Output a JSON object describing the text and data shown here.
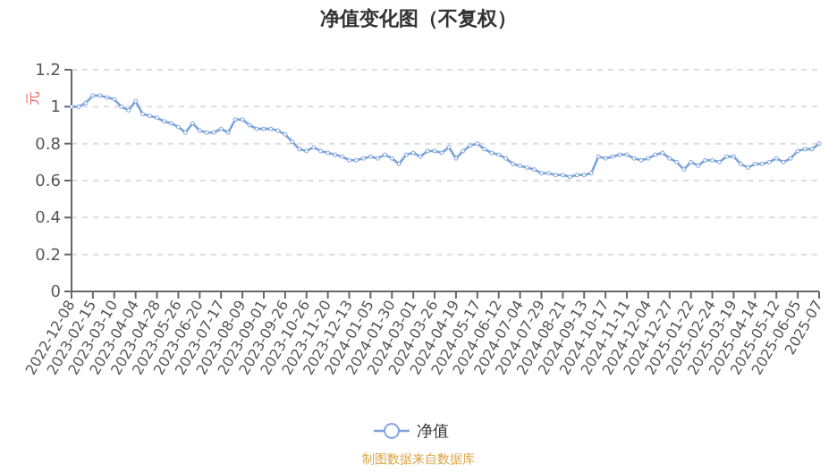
{
  "chart_data": {
    "type": "line",
    "title": "净值变化图（不复权）",
    "ylabel": "元",
    "categories": [
      "2022-12-08",
      null,
      null,
      "2023-02-15",
      null,
      null,
      "2023-03-10",
      null,
      null,
      "2023-04-04",
      null,
      null,
      "2023-04-28",
      null,
      null,
      "2023-05-26",
      null,
      null,
      "2023-06-20",
      null,
      null,
      "2023-07-17",
      null,
      null,
      "2023-08-09",
      null,
      null,
      "2023-09-01",
      null,
      null,
      "2023-09-26",
      null,
      null,
      "2023-10-26",
      null,
      null,
      "2023-11-20",
      null,
      null,
      "2023-12-13",
      null,
      null,
      "2024-01-05",
      null,
      null,
      "2024-01-30",
      null,
      null,
      "2024-03-01",
      null,
      null,
      "2024-03-26",
      null,
      null,
      "2024-04-19",
      null,
      null,
      "2024-05-17",
      null,
      null,
      "2024-06-12",
      null,
      null,
      "2024-07-04",
      null,
      null,
      "2024-07-29",
      null,
      null,
      "2024-08-21",
      null,
      null,
      "2024-09-13",
      null,
      null,
      "2024-10-17",
      null,
      null,
      "2024-11-11",
      null,
      null,
      "2024-12-04",
      null,
      null,
      "2024-12-27",
      null,
      null,
      "2025-01-22",
      null,
      null,
      "2025-02-24",
      null,
      null,
      "2025-03-19",
      null,
      null,
      "2025-04-14",
      null,
      null,
      "2025-05-12",
      null,
      null,
      "2025-06-05",
      null,
      null,
      "2025-07"
    ],
    "series": [
      {
        "name": "净值",
        "color": "#7ba3dc",
        "values": [
          1.0,
          1.0,
          1.02,
          1.06,
          1.06,
          1.05,
          1.04,
          1.0,
          0.98,
          1.03,
          0.96,
          0.95,
          0.94,
          0.92,
          0.91,
          0.89,
          0.86,
          0.91,
          0.87,
          0.86,
          0.86,
          0.88,
          0.86,
          0.93,
          0.93,
          0.9,
          0.88,
          0.88,
          0.88,
          0.87,
          0.85,
          0.81,
          0.77,
          0.76,
          0.78,
          0.76,
          0.75,
          0.74,
          0.73,
          0.71,
          0.71,
          0.72,
          0.73,
          0.72,
          0.74,
          0.72,
          0.69,
          0.74,
          0.75,
          0.73,
          0.76,
          0.76,
          0.75,
          0.78,
          0.72,
          0.76,
          0.79,
          0.8,
          0.77,
          0.75,
          0.74,
          0.72,
          0.69,
          0.68,
          0.67,
          0.66,
          0.64,
          0.64,
          0.63,
          0.63,
          0.62,
          0.63,
          0.63,
          0.64,
          0.73,
          0.72,
          0.73,
          0.74,
          0.74,
          0.72,
          0.71,
          0.72,
          0.74,
          0.75,
          0.72,
          0.7,
          0.66,
          0.7,
          0.68,
          0.71,
          0.71,
          0.7,
          0.73,
          0.73,
          0.69,
          0.67,
          0.69,
          0.69,
          0.7,
          0.72,
          0.7,
          0.72,
          0.76,
          0.77,
          0.77,
          0.8
        ]
      }
    ],
    "ylim": [
      0,
      1.2
    ],
    "yticks": [
      0,
      0.2,
      0.4,
      0.6,
      0.8,
      1,
      1.2
    ],
    "grid": "y",
    "legend": "bottom",
    "marker": "circle",
    "line_style": "solid",
    "annotations": [
      "制图数据来自数据库"
    ]
  }
}
